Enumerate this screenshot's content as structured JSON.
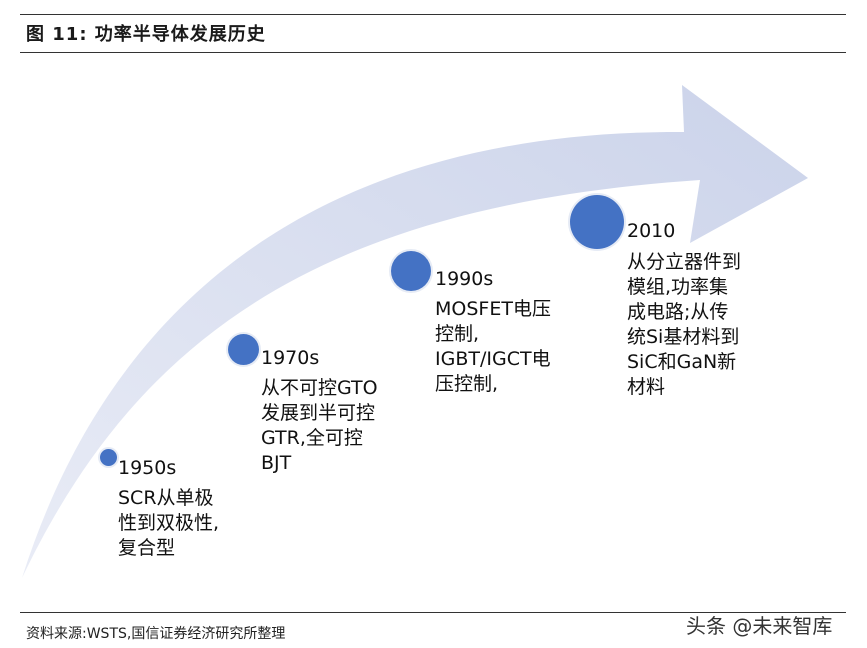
{
  "title": "图 11:  功率半导体发展历史",
  "milestones": [
    {
      "year": "1950s",
      "lines": [
        "SCR从单极",
        "性到双极性,",
        "复合型"
      ]
    },
    {
      "year": "1970s",
      "lines": [
        "从不可控GTO",
        "发展到半可控",
        "GTR,全可控",
        "BJT"
      ]
    },
    {
      "year": "1990s",
      "lines": [
        "MOSFET电压",
        "控制,",
        "IGBT/IGCT电",
        "压控制,"
      ]
    },
    {
      "year": "2010",
      "lines": [
        "从分立器件到",
        "模组,功率集",
        "成电路;从传",
        "统Si基材料到",
        "SiC和GaN新",
        "材料"
      ]
    }
  ],
  "source": "资料来源:WSTS,国信证券经济研究所整理",
  "watermark": "头条 @未来智库",
  "colors": {
    "arrow": "#d3d9ec",
    "dot": "#4472c4"
  }
}
